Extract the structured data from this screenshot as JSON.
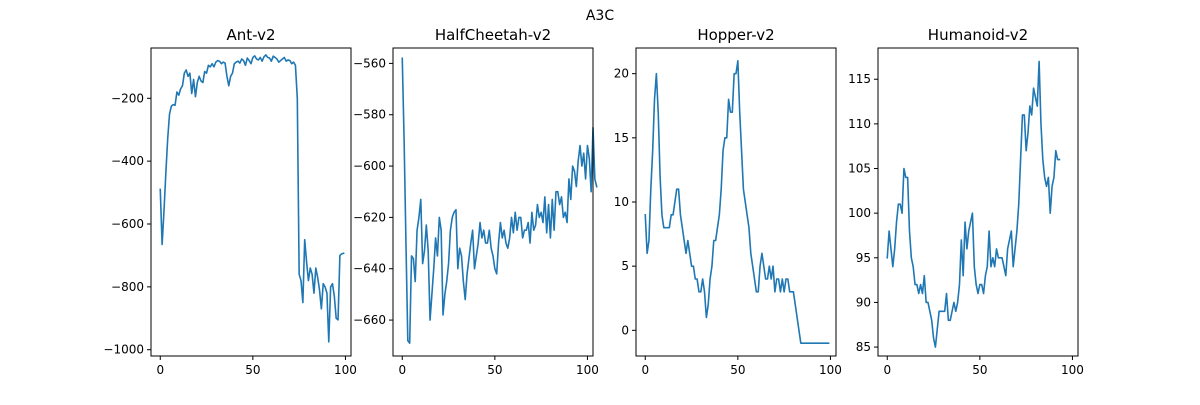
{
  "figure": {
    "title": "A3C"
  },
  "colors": {
    "line": "#1f77b4"
  },
  "chart_data": [
    {
      "type": "line",
      "title": "Ant-v2",
      "xlabel": "",
      "ylabel": "",
      "xlim": [
        -5,
        103
      ],
      "ylim": [
        -1020,
        -40
      ],
      "xticks": [
        0,
        50,
        100
      ],
      "xtick_labels": [
        "0",
        "50",
        "100"
      ],
      "yticks": [
        -1000,
        -800,
        -600,
        -400,
        -200
      ],
      "ytick_labels": [
        "−1000",
        "−800",
        "−600",
        "−400",
        "−200"
      ],
      "grid": false,
      "series": [
        {
          "values": [
            -490,
            -665,
            -560,
            -440,
            -330,
            -250,
            -225,
            -220,
            -222,
            -180,
            -190,
            -170,
            -160,
            -120,
            -110,
            -130,
            -120,
            -185,
            -140,
            -195,
            -150,
            -130,
            -145,
            -150,
            -115,
            -120,
            -95,
            -100,
            -90,
            -100,
            -85,
            -80,
            -82,
            -90,
            -85,
            -88,
            -130,
            -160,
            -130,
            -120,
            -90,
            -85,
            -82,
            -88,
            -75,
            -80,
            -95,
            -72,
            -80,
            -90,
            -70,
            -65,
            -75,
            -78,
            -70,
            -82,
            -68,
            -62,
            -70,
            -72,
            -82,
            -66,
            -70,
            -75,
            -85,
            -80,
            -75,
            -70,
            -82,
            -78,
            -80,
            -90,
            -85,
            -95,
            -200,
            -760,
            -780,
            -850,
            -650,
            -720,
            -780,
            -740,
            -760,
            -820,
            -740,
            -770,
            -810,
            -870,
            -790,
            -800,
            -820,
            -975,
            -800,
            -790,
            -830,
            -900,
            -905,
            -700,
            -695,
            -693
          ]
        }
      ]
    },
    {
      "type": "line",
      "title": "HalfCheetah-v2",
      "xlabel": "",
      "ylabel": "",
      "xlim": [
        -5,
        103
      ],
      "ylim": [
        -674,
        -554
      ],
      "xticks": [
        0,
        50,
        100
      ],
      "xtick_labels": [
        "0",
        "50",
        "100"
      ],
      "yticks": [
        -660,
        -640,
        -620,
        -600,
        -580,
        -560
      ],
      "ytick_labels": [
        "−660",
        "−640",
        "−620",
        "−600",
        "−580",
        "−560"
      ],
      "grid": false,
      "series": [
        {
          "values": [
            -558,
            -590,
            -630,
            -668,
            -669,
            -635,
            -636,
            -645,
            -625,
            -620,
            -613,
            -638,
            -633,
            -623,
            -633,
            -660,
            -650,
            -640,
            -628,
            -635,
            -620,
            -625,
            -658,
            -650,
            -645,
            -638,
            -625,
            -620,
            -618,
            -617,
            -640,
            -632,
            -635,
            -645,
            -652,
            -642,
            -636,
            -630,
            -625,
            -640,
            -635,
            -630,
            -622,
            -628,
            -625,
            -630,
            -630,
            -625,
            -632,
            -635,
            -640,
            -642,
            -630,
            -622,
            -628,
            -625,
            -630,
            -632,
            -628,
            -620,
            -626,
            -618,
            -625,
            -620,
            -620,
            -628,
            -625,
            -625,
            -622,
            -630,
            -618,
            -625,
            -623,
            -615,
            -620,
            -618,
            -622,
            -612,
            -626,
            -615,
            -628,
            -613,
            -625,
            -610,
            -610,
            -615,
            -612,
            -620,
            -618,
            -622,
            -605,
            -613,
            -600,
            -602,
            -608,
            -598,
            -592,
            -600,
            -595,
            -605,
            -592,
            -597,
            -610,
            -585,
            -605,
            -608
          ]
        }
      ]
    },
    {
      "type": "line",
      "title": "Hopper-v2",
      "xlabel": "",
      "ylabel": "",
      "xlim": [
        -5,
        103
      ],
      "ylim": [
        -2,
        22
      ],
      "xticks": [
        0,
        50,
        100
      ],
      "xtick_labels": [
        "0",
        "50",
        "100"
      ],
      "yticks": [
        0,
        5,
        10,
        15,
        20
      ],
      "ytick_labels": [
        "0",
        "5",
        "10",
        "15",
        "20"
      ],
      "grid": false,
      "series": [
        {
          "values": [
            9,
            6,
            7,
            11,
            14,
            18,
            20,
            17,
            12,
            9,
            8,
            8,
            8,
            8,
            9,
            9,
            10,
            11,
            11,
            9,
            8,
            7,
            6,
            7,
            6,
            5,
            5,
            4,
            4,
            3,
            3,
            4,
            3,
            1,
            2,
            4,
            5,
            7,
            7,
            8,
            9,
            11,
            14,
            15,
            15,
            18,
            17,
            17,
            20,
            20,
            21,
            17,
            14,
            11,
            10,
            9,
            8,
            6,
            5,
            4,
            3,
            3,
            5,
            6,
            5,
            4,
            4,
            5,
            4,
            5,
            3,
            4,
            4,
            3,
            4,
            3,
            4,
            4,
            3,
            3,
            3,
            2,
            1,
            0,
            -1,
            -1,
            -1,
            -1,
            -1,
            -1,
            -1,
            -1,
            -1,
            -1,
            -1,
            -1,
            -1,
            -1,
            -1,
            -1
          ]
        }
      ]
    },
    {
      "type": "line",
      "title": "Humanoid-v2",
      "xlabel": "",
      "ylabel": "",
      "xlim": [
        -5,
        103
      ],
      "ylim": [
        84,
        118.5
      ],
      "xticks": [
        0,
        50,
        100
      ],
      "xtick_labels": [
        "0",
        "50",
        "100"
      ],
      "yticks": [
        85,
        90,
        95,
        100,
        105,
        110,
        115
      ],
      "ytick_labels": [
        "85",
        "90",
        "95",
        "100",
        "105",
        "110",
        "115"
      ],
      "grid": false,
      "series": [
        {
          "values": [
            95,
            98,
            96,
            94,
            96,
            99,
            101,
            101,
            100,
            105,
            104,
            104,
            98,
            95,
            94,
            92,
            92,
            91,
            92,
            91,
            93,
            90,
            90,
            89,
            88,
            86,
            85,
            87,
            89,
            89,
            89,
            89,
            91,
            88,
            88,
            89,
            90,
            89,
            90,
            92,
            97,
            93,
            99,
            96,
            98,
            99,
            100,
            94,
            92,
            91,
            92,
            92,
            91,
            93,
            94,
            98,
            94,
            95,
            94,
            96,
            95,
            95,
            95,
            94,
            93,
            96,
            97,
            98,
            94,
            96,
            98,
            101,
            106,
            111,
            111,
            107,
            109,
            112,
            111,
            114,
            113,
            112,
            117,
            110,
            106,
            104,
            103,
            104,
            100,
            103,
            104,
            107,
            106,
            106
          ]
        }
      ]
    }
  ]
}
